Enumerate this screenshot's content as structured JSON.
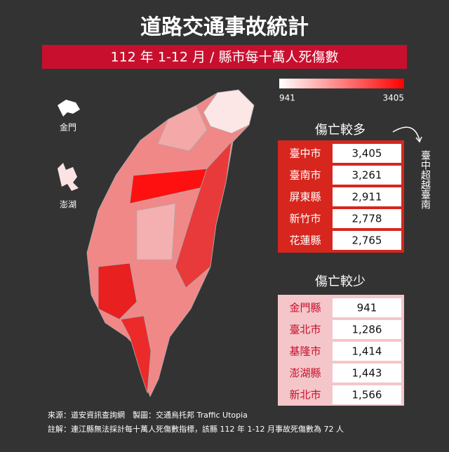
{
  "header": {
    "title": "道路交通事故統計",
    "subtitle": "112 年 1-12 月 / 縣市每十萬人死傷數"
  },
  "legend": {
    "min": 941,
    "max": 3405
  },
  "map_labels": {
    "kinmen": "金門",
    "penghu": "澎湖"
  },
  "most": {
    "heading": "傷亡較多",
    "note": "臺中超越臺南",
    "rows": [
      [
        "臺中市",
        "3,405"
      ],
      [
        "臺南市",
        "3,261"
      ],
      [
        "屏東縣",
        "2,911"
      ],
      [
        "新竹市",
        "2,778"
      ],
      [
        "花蓮縣",
        "2,765"
      ]
    ]
  },
  "least": {
    "heading": "傷亡較少",
    "rows": [
      [
        "金門縣",
        "941"
      ],
      [
        "臺北市",
        "1,286"
      ],
      [
        "基隆市",
        "1,414"
      ],
      [
        "澎湖縣",
        "1,443"
      ],
      [
        "新北市",
        "1,566"
      ]
    ]
  },
  "footer": {
    "source": "來源：道安資訊查詢網　製圖：交通烏托邦 Traffic Utopia",
    "note": "註解：連江縣無法採計每十萬人死傷數指標，該縣 112 年 1-12 月事故死傷數為 72 人"
  }
}
